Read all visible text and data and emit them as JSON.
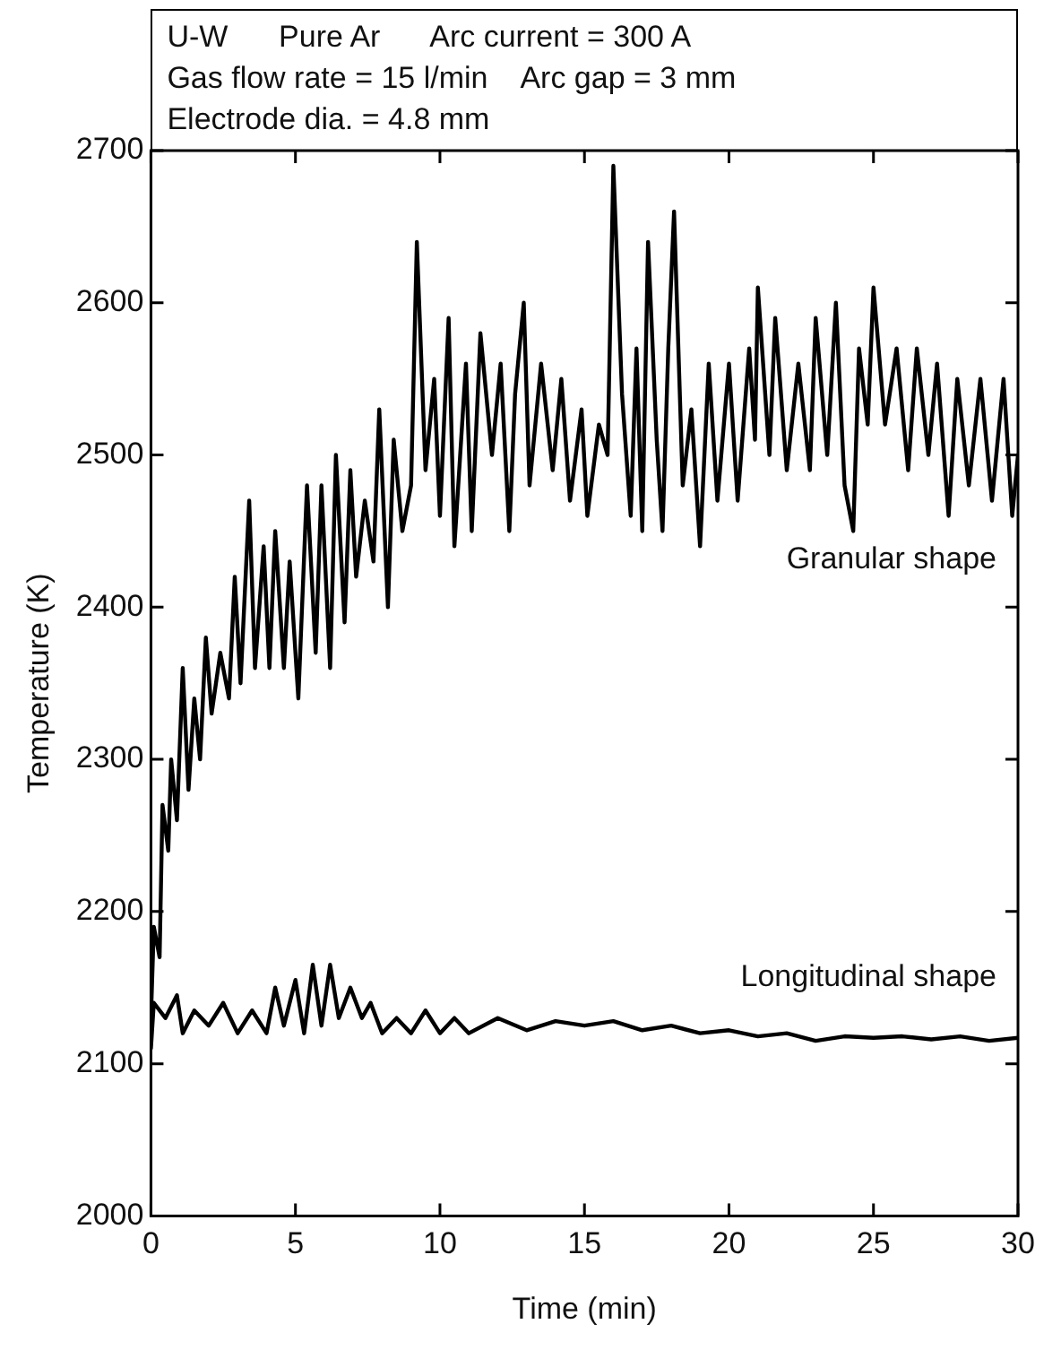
{
  "chart_data": {
    "type": "line",
    "title": "U-W      Pure Ar      Arc current = 300 A",
    "subtitle": "Gas flow rate = 15 l/min    Arc gap = 3 mm",
    "annotations": [
      "Electrode dia. = 4.8 mm"
    ],
    "xlabel": "Time (min)",
    "ylabel": "Temperature (K)",
    "xlim": [
      0,
      30
    ],
    "xticks": [
      0,
      5,
      10,
      15,
      20,
      25,
      30
    ],
    "ylim": [
      2000,
      2700
    ],
    "yticks": [
      2000,
      2100,
      2200,
      2300,
      2400,
      2500,
      2600,
      2700
    ],
    "grid": false,
    "legend": false,
    "marker": "none",
    "line_style": "solid",
    "series": [
      {
        "name": "Granular shape",
        "color": "#000000",
        "x": [
          0,
          0.1,
          0.3,
          0.4,
          0.6,
          0.7,
          0.9,
          1.1,
          1.3,
          1.5,
          1.7,
          1.9,
          2.1,
          2.4,
          2.7,
          2.9,
          3.1,
          3.4,
          3.6,
          3.9,
          4.1,
          4.3,
          4.6,
          4.8,
          5.1,
          5.4,
          5.7,
          5.9,
          6.2,
          6.4,
          6.7,
          6.9,
          7.1,
          7.4,
          7.7,
          7.9,
          8.2,
          8.4,
          8.7,
          9.0,
          9.2,
          9.5,
          9.8,
          10.0,
          10.3,
          10.5,
          10.9,
          11.1,
          11.4,
          11.8,
          12.1,
          12.4,
          12.6,
          12.9,
          13.1,
          13.5,
          13.9,
          14.2,
          14.5,
          14.9,
          15.1,
          15.5,
          15.8,
          16.0,
          16.3,
          16.6,
          16.8,
          17.0,
          17.2,
          17.5,
          17.7,
          17.9,
          18.1,
          18.4,
          18.7,
          19.0,
          19.3,
          19.6,
          20.0,
          20.3,
          20.7,
          20.9,
          21.0,
          21.4,
          21.6,
          22.0,
          22.4,
          22.8,
          23.0,
          23.4,
          23.7,
          24.0,
          24.3,
          24.5,
          24.8,
          25.0,
          25.4,
          25.8,
          26.2,
          26.5,
          26.9,
          27.2,
          27.6,
          27.9,
          28.3,
          28.7,
          29.1,
          29.5,
          29.8,
          30
        ],
        "values": [
          2130,
          2190,
          2170,
          2270,
          2240,
          2300,
          2260,
          2360,
          2280,
          2340,
          2300,
          2380,
          2330,
          2370,
          2340,
          2420,
          2350,
          2470,
          2360,
          2440,
          2360,
          2450,
          2360,
          2430,
          2340,
          2480,
          2370,
          2480,
          2360,
          2500,
          2390,
          2490,
          2420,
          2470,
          2430,
          2530,
          2400,
          2510,
          2450,
          2480,
          2640,
          2490,
          2550,
          2460,
          2590,
          2440,
          2560,
          2450,
          2580,
          2500,
          2560,
          2450,
          2540,
          2600,
          2480,
          2560,
          2490,
          2550,
          2470,
          2530,
          2460,
          2520,
          2500,
          2690,
          2540,
          2460,
          2570,
          2450,
          2640,
          2510,
          2450,
          2570,
          2660,
          2480,
          2530,
          2440,
          2560,
          2470,
          2560,
          2470,
          2570,
          2510,
          2610,
          2500,
          2590,
          2490,
          2560,
          2490,
          2590,
          2500,
          2600,
          2480,
          2450,
          2570,
          2520,
          2610,
          2520,
          2570,
          2490,
          2570,
          2500,
          2560,
          2460,
          2550,
          2480,
          2550,
          2470,
          2550,
          2460,
          2500
        ]
      },
      {
        "name": "Longitudinal shape",
        "color": "#000000",
        "x": [
          0,
          0.1,
          0.5,
          0.9,
          1.1,
          1.5,
          2.0,
          2.5,
          3.0,
          3.5,
          4.0,
          4.3,
          4.6,
          5.0,
          5.3,
          5.6,
          5.9,
          6.2,
          6.5,
          6.9,
          7.3,
          7.6,
          8.0,
          8.5,
          9.0,
          9.5,
          10.0,
          10.5,
          11,
          12,
          13,
          14,
          15,
          16,
          17,
          18,
          19,
          20,
          21,
          22,
          23,
          24,
          25,
          26,
          27,
          28,
          29,
          30
        ],
        "values": [
          2110,
          2140,
          2130,
          2145,
          2120,
          2135,
          2125,
          2140,
          2120,
          2135,
          2120,
          2150,
          2125,
          2155,
          2120,
          2165,
          2125,
          2165,
          2130,
          2150,
          2130,
          2140,
          2120,
          2130,
          2120,
          2135,
          2120,
          2130,
          2120,
          2130,
          2122,
          2128,
          2125,
          2128,
          2122,
          2125,
          2120,
          2122,
          2118,
          2120,
          2115,
          2118,
          2117,
          2118,
          2116,
          2118,
          2115,
          2117
        ]
      }
    ]
  }
}
